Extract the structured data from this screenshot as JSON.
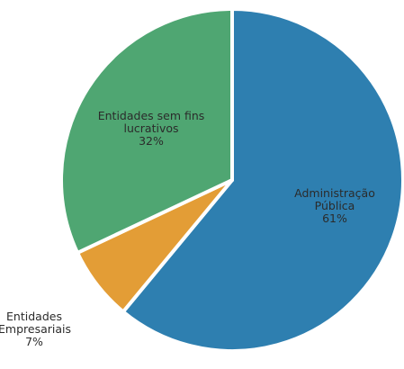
{
  "chart_data": {
    "type": "pie",
    "categories": [
      "Administração Pública",
      "Entidades Empresariais",
      "Entidades sem fins lucrativos"
    ],
    "values": [
      61,
      7,
      32
    ],
    "value_labels": [
      "61%",
      "7%",
      "32%"
    ],
    "colors": [
      "#2e7fb0",
      "#e39d36",
      "#4fa672"
    ]
  }
}
